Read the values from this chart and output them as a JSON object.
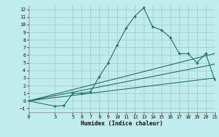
{
  "xlabel": "Humidex (Indice chaleur)",
  "bg_color": "#c0ecec",
  "grid_color": "#a0cccc",
  "line_color": "#1a6b5a",
  "xlim": [
    0,
    21
  ],
  "ylim": [
    -1.5,
    12.5
  ],
  "xticks": [
    0,
    3,
    5,
    6,
    7,
    8,
    9,
    10,
    11,
    12,
    13,
    14,
    15,
    16,
    17,
    18,
    19,
    20,
    21
  ],
  "yticks": [
    -1,
    0,
    1,
    2,
    3,
    4,
    5,
    6,
    7,
    8,
    9,
    10,
    11,
    12
  ],
  "line1_x": [
    0,
    3,
    4,
    5,
    6,
    7,
    8,
    9,
    10,
    11,
    12,
    13,
    14,
    15,
    16,
    17,
    18,
    19,
    20,
    21
  ],
  "line1_y": [
    0,
    -0.7,
    -0.6,
    1.0,
    1.0,
    1.2,
    3.2,
    5.0,
    7.3,
    9.5,
    11.1,
    12.2,
    9.7,
    9.3,
    8.3,
    6.2,
    6.2,
    5.0,
    6.2,
    2.8
  ],
  "line2_x": [
    0,
    21
  ],
  "line2_y": [
    0,
    6.2
  ],
  "line3_x": [
    0,
    21
  ],
  "line3_y": [
    0,
    4.8
  ],
  "line4_x": [
    0,
    21
  ],
  "line4_y": [
    0,
    3.0
  ]
}
